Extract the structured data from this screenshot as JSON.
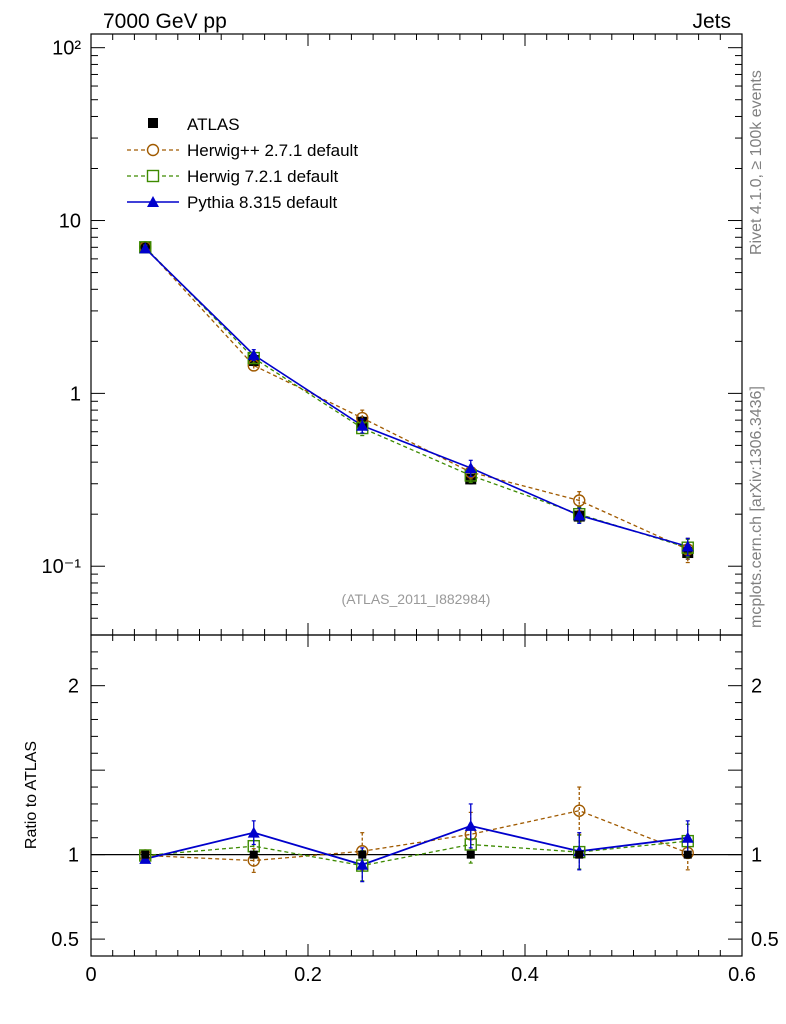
{
  "header": {
    "left_title": "7000 GeV pp",
    "right_title": "Jets"
  },
  "side_labels": {
    "rivet": "Rivet 4.1.0, ≥ 100k events",
    "mcplots": "mcplots.cern.ch [arXiv:1306.3436]"
  },
  "analysis_tag": "(ATLAS_2011_I882984)",
  "colors": {
    "atlas": "#000000",
    "herwigpp": "#a05a00",
    "herwig7": "#3d8a00",
    "pythia": "#0000cc"
  },
  "chart_data": {
    "type": "line",
    "x": [
      0.05,
      0.15,
      0.25,
      0.35,
      0.45,
      0.55
    ],
    "xlim": [
      0,
      0.6
    ],
    "xticks": [
      "0",
      "0.2",
      "0.4",
      "0.6"
    ],
    "ylim": [
      0.04,
      120
    ],
    "yscale": "log",
    "yticks": [
      "10⁻¹",
      "1",
      "10",
      "10²"
    ],
    "legend": {
      "position": "top-left",
      "entries": [
        "ATLAS",
        "Herwig++ 2.7.1 default",
        "Herwig 7.2.1 default",
        "Pythia 8.315 default"
      ]
    },
    "series": [
      {
        "name": "ATLAS",
        "marker": "filled-square",
        "line": "none",
        "values": [
          7.0,
          1.55,
          0.68,
          0.32,
          0.195,
          0.12
        ],
        "errors": [
          0.3,
          0.1,
          0.05,
          0.02,
          0.015,
          0.01
        ]
      },
      {
        "name": "Herwig++ 2.7.1 default",
        "marker": "open-circle",
        "line": "dashed",
        "values": [
          7.0,
          1.45,
          0.72,
          0.35,
          0.24,
          0.125
        ],
        "errors": [
          0.2,
          0.1,
          0.08,
          0.03,
          0.03,
          0.02
        ]
      },
      {
        "name": "Herwig 7.2.1 default",
        "marker": "open-square",
        "line": "dashed",
        "values": [
          7.0,
          1.6,
          0.63,
          0.335,
          0.2,
          0.128
        ],
        "errors": [
          0.2,
          0.1,
          0.06,
          0.03,
          0.02,
          0.015
        ]
      },
      {
        "name": "Pythia 8.315 default",
        "marker": "filled-triangle",
        "line": "solid",
        "values": [
          6.9,
          1.67,
          0.65,
          0.37,
          0.197,
          0.13
        ],
        "errors": [
          0.2,
          0.12,
          0.06,
          0.04,
          0.02,
          0.015
        ]
      }
    ],
    "ratio_panel": {
      "ylabel": "Ratio to ATLAS",
      "ylim": [
        0.4,
        2.3
      ],
      "yticks": [
        "0.5",
        "1",
        "2"
      ],
      "reference": 1,
      "series": [
        {
          "name": "Herwig++ 2.7.1 default",
          "values": [
            0.995,
            0.965,
            1.02,
            1.12,
            1.26,
            1.01
          ],
          "errors": [
            0.02,
            0.07,
            0.11,
            0.13,
            0.14,
            0.1
          ]
        },
        {
          "name": "Herwig 7.2.1 default",
          "values": [
            0.995,
            1.05,
            0.935,
            1.06,
            1.015,
            1.08
          ],
          "errors": [
            0.02,
            0.07,
            0.09,
            0.11,
            0.1,
            0.1
          ]
        },
        {
          "name": "Pythia 8.315 default",
          "values": [
            0.975,
            1.13,
            0.94,
            1.17,
            1.02,
            1.1
          ],
          "errors": [
            0.02,
            0.07,
            0.1,
            0.13,
            0.11,
            0.1
          ]
        }
      ]
    }
  }
}
